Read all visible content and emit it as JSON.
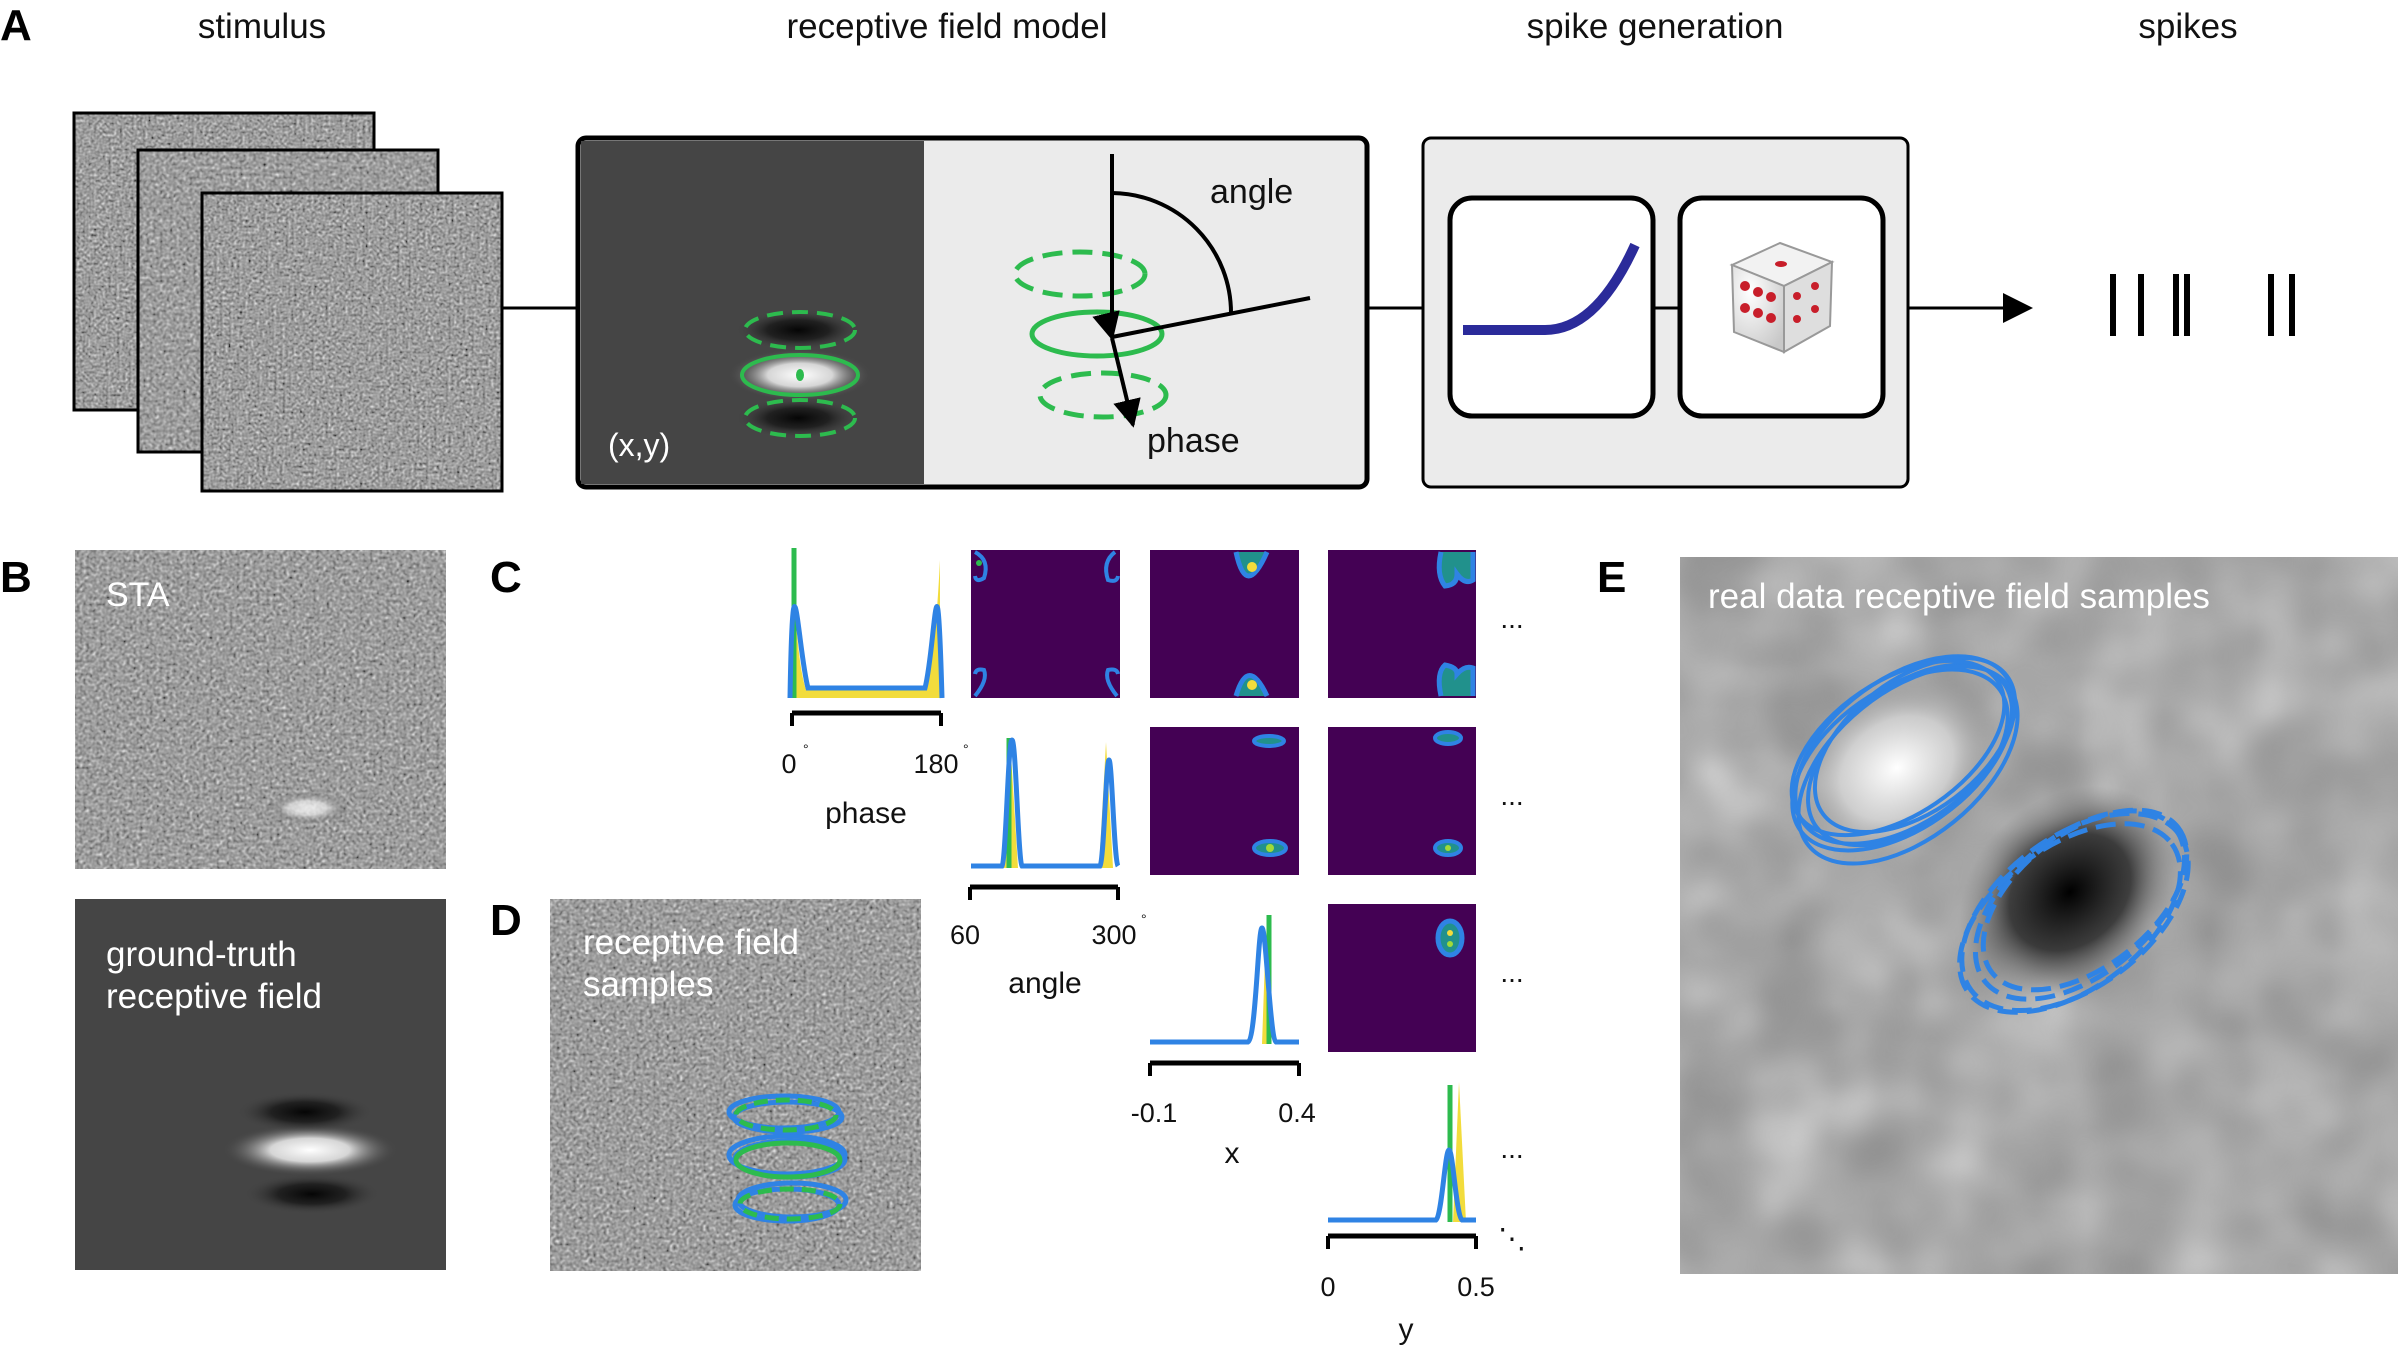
{
  "panel_letters": {
    "a": "A",
    "b": "B",
    "c": "C",
    "d": "D",
    "e": "E"
  },
  "panel_a": {
    "stage_labels": [
      "stimulus",
      "receptive field model",
      "spike generation",
      "spikes"
    ],
    "position_label": "(x,y)",
    "angle_label": "angle",
    "phase_label": "phase"
  },
  "panel_b": {
    "sta_label": "STA",
    "ground_truth_line1": "ground-truth",
    "ground_truth_line2": "receptive field"
  },
  "panel_c": {
    "phase_axis": {
      "name": "phase",
      "min": "0",
      "max": "180",
      "unit": "°"
    },
    "angle_axis": {
      "name": "angle",
      "min": "60",
      "max": "300",
      "unit": "°"
    },
    "x_axis": {
      "name": "x",
      "min": "-0.1",
      "max": "0.4"
    },
    "y_axis": {
      "name": "y",
      "min": "0",
      "max": "0.5"
    },
    "ellipsis": "...",
    "diag_ellipsis": "⋱"
  },
  "panel_d": {
    "line1": "receptive field",
    "line2": "samples"
  },
  "panel_e": {
    "label": "real data receptive field samples"
  },
  "colors": {
    "samples_blue": "#2f83e4",
    "truth_green": "#2dbb4e",
    "prior_yellow": "#f2dc3c",
    "posterior_purple": "#440154",
    "dark_blue_curve": "#2b2b9a"
  }
}
